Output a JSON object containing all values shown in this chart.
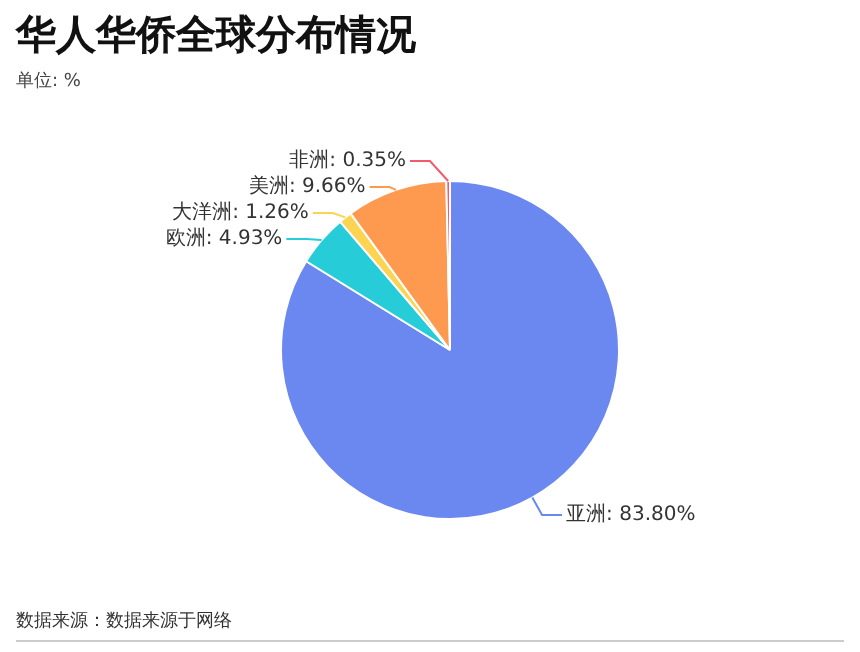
{
  "chart_data": {
    "type": "pie",
    "title": "华人华侨全球分布情况",
    "subtitle": "单位: %",
    "categories": [
      "亚洲",
      "欧洲",
      "大洋洲",
      "美洲",
      "非洲"
    ],
    "values": [
      83.8,
      4.93,
      1.26,
      9.66,
      0.35
    ],
    "value_labels": [
      "83.80%",
      "4.93%",
      "1.26%",
      "9.66%",
      "0.35%"
    ],
    "colors": [
      "#6b87f0",
      "#26ccd8",
      "#fdd451",
      "#fd9a50",
      "#f45b6a"
    ],
    "annotations": [
      "数据来源：数据来源于网络"
    ],
    "legend": false
  }
}
